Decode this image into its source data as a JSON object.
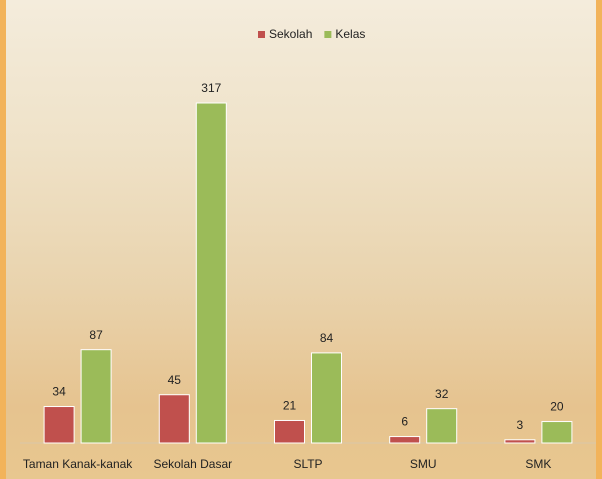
{
  "chart_data": {
    "type": "bar",
    "categories": [
      "Taman Kanak-kanak",
      "Sekolah Dasar",
      "SLTP",
      "SMU",
      "SMK"
    ],
    "series": [
      {
        "name": "Sekolah",
        "color": "#c0504d",
        "values": [
          34,
          45,
          21,
          6,
          3
        ]
      },
      {
        "name": "Kelas",
        "color": "#9bbb59",
        "values": [
          87,
          317,
          84,
          32,
          20
        ]
      }
    ],
    "legend": "top"
  }
}
